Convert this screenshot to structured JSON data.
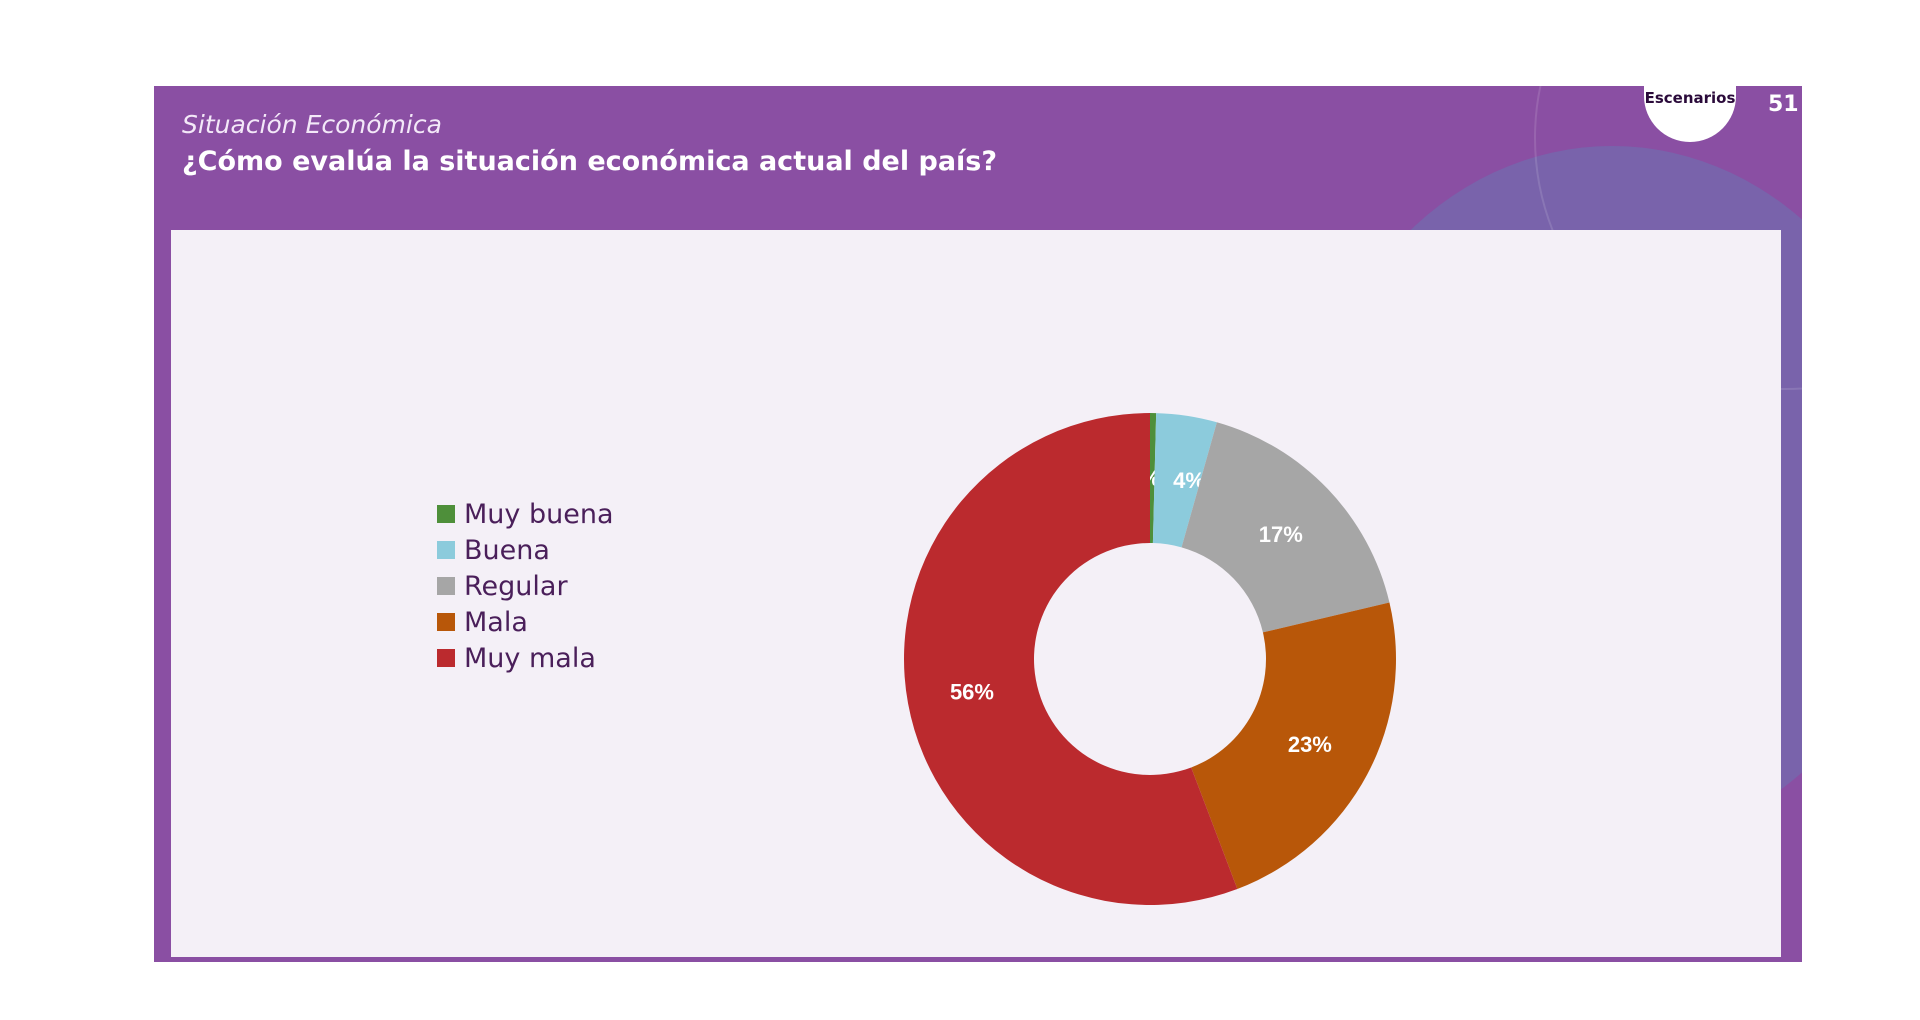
{
  "header": {
    "section": "Situación Económica",
    "question": "¿Cómo evalúa la situación económica actual del país?",
    "logo_text": "Escenarios",
    "page_number": "51"
  },
  "chart_data": {
    "type": "pie",
    "variant": "donut",
    "categories": [
      "Muy buena",
      "Buena",
      "Regular",
      "Mala",
      "Muy mala"
    ],
    "values": [
      0,
      4,
      17,
      23,
      56
    ],
    "data_labels": [
      "0%",
      "4%",
      "17%",
      "23%",
      "56%"
    ],
    "colors": [
      "#4e8f3a",
      "#8ccbdc",
      "#a6a6a6",
      "#b85709",
      "#bb2a2e"
    ],
    "legend_position": "left"
  }
}
